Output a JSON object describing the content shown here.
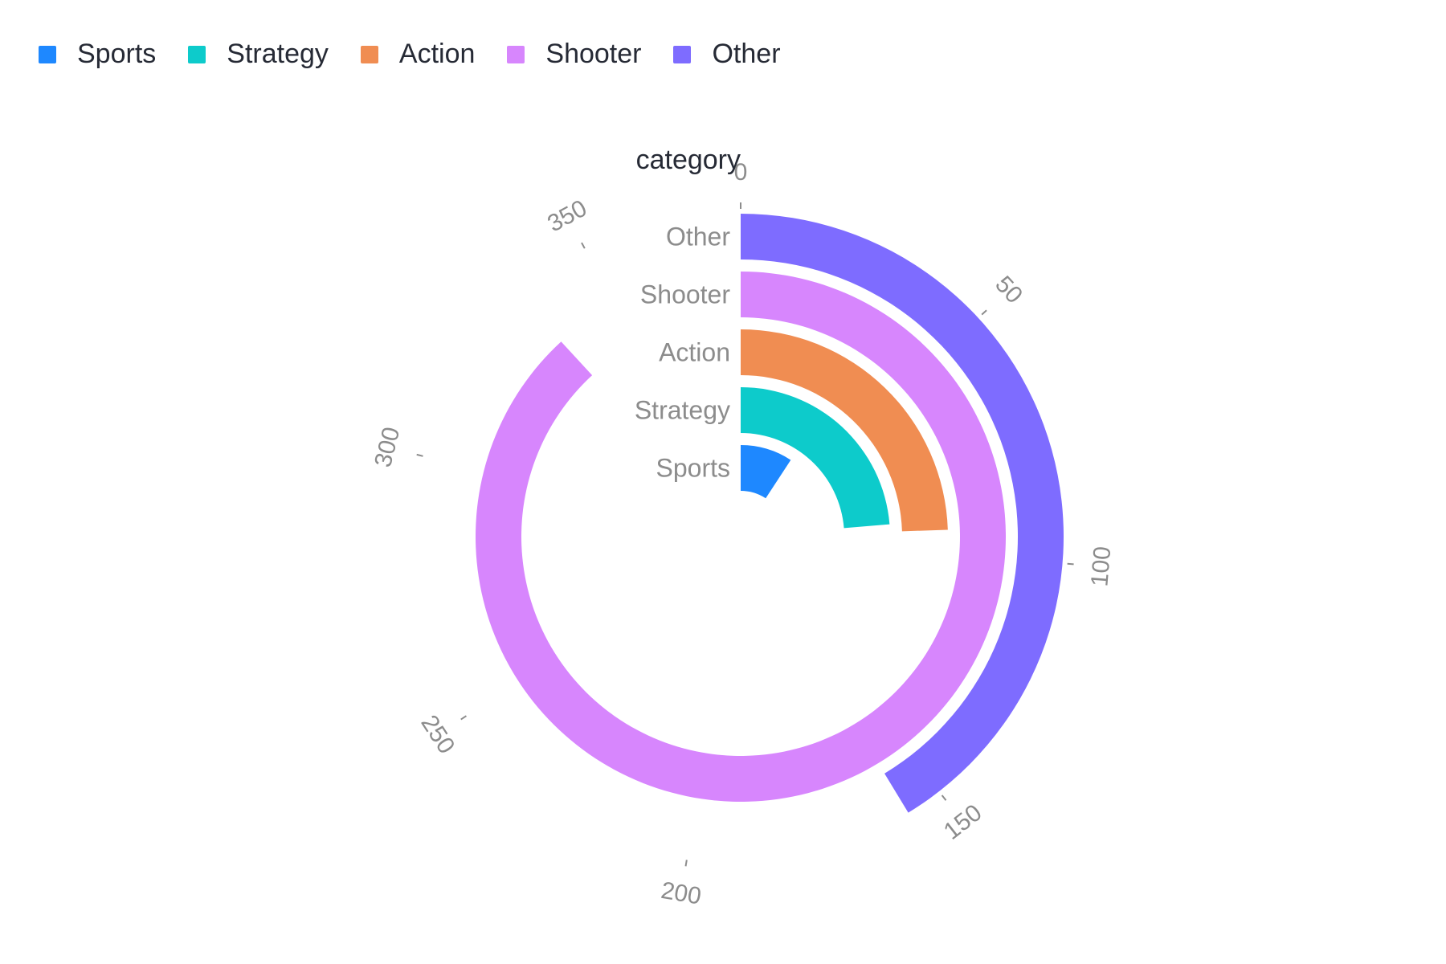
{
  "chart_data": {
    "type": "radial-bar",
    "axis_title": "category",
    "categories": [
      "Sports",
      "Strategy",
      "Action",
      "Shooter",
      "Other"
    ],
    "values": [
      35,
      90,
      93,
      335,
      157
    ],
    "colors": [
      "#1e88ff",
      "#0dcbcb",
      "#f08d52",
      "#d786fd",
      "#7e6cff"
    ],
    "angular_ticks": [
      "0",
      "50",
      "100",
      "150",
      "200",
      "250",
      "300",
      "350"
    ],
    "tick_values": [
      0,
      50,
      100,
      150,
      200,
      250,
      300,
      350
    ],
    "angle_range": [
      0,
      380
    ],
    "legend_position": "top-left",
    "grid": false
  },
  "legend": {
    "items": [
      {
        "label": "Sports",
        "color": "#1e88ff"
      },
      {
        "label": "Strategy",
        "color": "#0dcbcb"
      },
      {
        "label": "Action",
        "color": "#f08d52"
      },
      {
        "label": "Shooter",
        "color": "#d786fd"
      },
      {
        "label": "Other",
        "color": "#7e6cff"
      }
    ]
  }
}
